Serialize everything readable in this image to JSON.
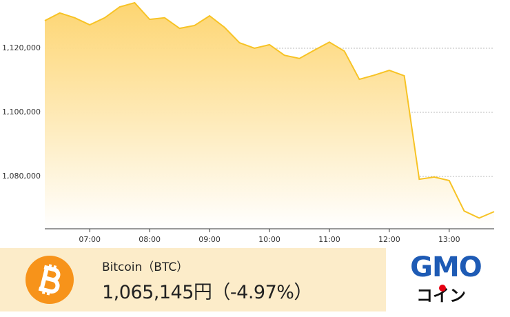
{
  "chart_data": {
    "type": "area",
    "x": [
      "06:15",
      "06:30",
      "06:45",
      "07:00",
      "07:15",
      "07:30",
      "07:45",
      "08:00",
      "08:15",
      "08:30",
      "08:45",
      "09:00",
      "09:15",
      "09:30",
      "09:45",
      "10:00",
      "10:15",
      "10:30",
      "10:45",
      "11:00",
      "11:15",
      "11:30",
      "11:45",
      "12:00",
      "12:15",
      "12:30",
      "12:45",
      "13:00",
      "13:15",
      "13:30",
      "13:45"
    ],
    "values": [
      1128600,
      1131000,
      1129500,
      1127300,
      1129500,
      1132900,
      1134200,
      1129000,
      1129500,
      1126200,
      1127100,
      1130100,
      1126500,
      1121700,
      1120000,
      1121100,
      1117800,
      1116800,
      1119400,
      1121900,
      1119100,
      1110300,
      1111600,
      1113100,
      1111400,
      1079100,
      1079800,
      1078700,
      1069200,
      1067000,
      1069000
    ],
    "color": "#f7c325",
    "xlim": [
      "06:15",
      "13:45"
    ],
    "xticks": [
      "07:00",
      "08:00",
      "09:00",
      "10:00",
      "11:00",
      "12:00",
      "13:00"
    ],
    "ylim": [
      1063650,
      1135050
    ],
    "yticks": [
      {
        "value": 1080000,
        "label": "1,080,000"
      },
      {
        "value": 1100000,
        "label": "1,100,000"
      },
      {
        "value": 1120000,
        "label": "1,120,000"
      }
    ],
    "grid": true
  },
  "footer": {
    "name": "Bitcoin（BTC）",
    "price": "1,065,145円（-4.97%）"
  },
  "logo": {
    "brand": "GMO",
    "sub": "コイン"
  }
}
